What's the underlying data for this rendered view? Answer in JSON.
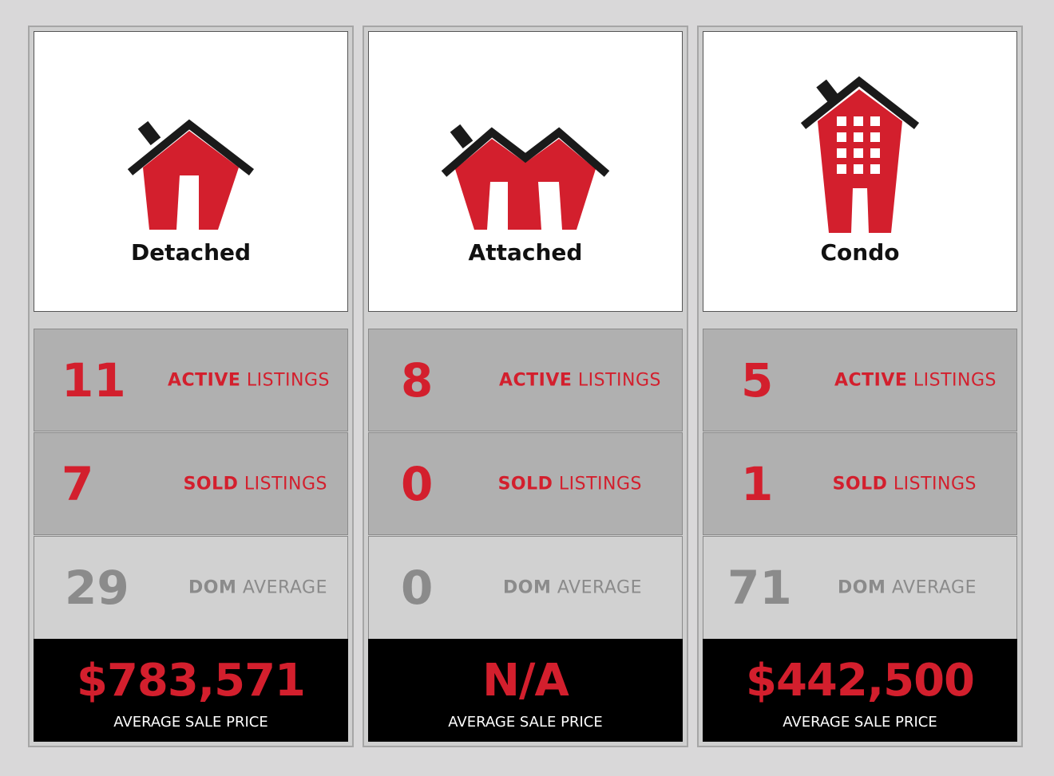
{
  "cards": [
    {
      "type": "Detached",
      "icon": "detached-house-icon",
      "active_count": "11",
      "active_bold": "ACTIVE",
      "active_rest": " LISTINGS",
      "sold_count": "7",
      "sold_bold": "SOLD",
      "sold_rest": " LISTINGS",
      "dom_count": "29",
      "dom_bold": "DOM",
      "dom_rest": " AVERAGE",
      "price": "$783,571",
      "price_label": "AVERAGE SALE PRICE"
    },
    {
      "type": "Attached",
      "icon": "attached-house-icon",
      "active_count": "8",
      "active_bold": "ACTIVE",
      "active_rest": " LISTINGS",
      "sold_count": "0",
      "sold_bold": "SOLD",
      "sold_rest": " LISTINGS",
      "dom_count": "0",
      "dom_bold": "DOM",
      "dom_rest": " AVERAGE",
      "price": "N/A",
      "price_label": "AVERAGE SALE PRICE"
    },
    {
      "type": "Condo",
      "icon": "condo-building-icon",
      "active_count": "5",
      "active_bold": "ACTIVE",
      "active_rest": " LISTINGS",
      "sold_count": "1",
      "sold_bold": "SOLD",
      "sold_rest": " LISTINGS",
      "dom_count": "71",
      "dom_bold": "DOM",
      "dom_rest": " AVERAGE",
      "price": "$442,500",
      "price_label": "AVERAGE SALE PRICE"
    }
  ],
  "colors": {
    "accent": "#d31f2d",
    "muted": "#8b8b8b",
    "dark": "#000000"
  }
}
